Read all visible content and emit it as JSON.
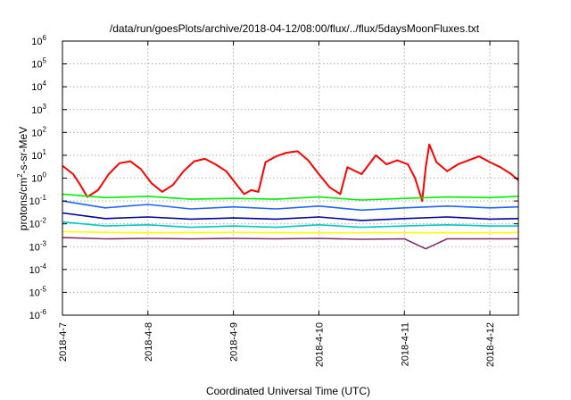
{
  "chart_data": {
    "type": "line",
    "title": "/data/run/goesPlots/archive/2018-04-12/08:00/flux/../flux/5daysMoonFluxes.txt",
    "xlabel": "Coordinated Universal Time (UTC)",
    "ylabel_parts": {
      "base": "protons/cm",
      "exp": "2",
      "rest": "-s-sr-MeV"
    },
    "yscale": "log",
    "ylim": [
      1e-06,
      1000000.0
    ],
    "xlim": [
      "2018-04-07",
      "2018-04-12 08:00"
    ],
    "grid": true,
    "x_ticks": [
      "2018-4-7",
      "2018-4-8",
      "2018-4-9",
      "2018-4-10",
      "2018-4-11",
      "2018-4-12"
    ],
    "y_ticks": [
      {
        "base": "10",
        "exp": "-6"
      },
      {
        "base": "10",
        "exp": "-5"
      },
      {
        "base": "10",
        "exp": "-4"
      },
      {
        "base": "10",
        "exp": "-3"
      },
      {
        "base": "10",
        "exp": "-2"
      },
      {
        "base": "10",
        "exp": "-1"
      },
      {
        "base": "10",
        "exp": "0"
      },
      {
        "base": "10",
        "exp": "1"
      },
      {
        "base": "10",
        "exp": "2"
      },
      {
        "base": "10",
        "exp": "3"
      },
      {
        "base": "10",
        "exp": "4"
      },
      {
        "base": "10",
        "exp": "5"
      },
      {
        "base": "10",
        "exp": "6"
      }
    ],
    "series": [
      {
        "color": "#ff0000",
        "x": [
          "2018-04-07 00:00",
          "2018-04-07 03:00",
          "2018-04-07 05:00",
          "2018-04-07 07:00",
          "2018-04-07 10:00",
          "2018-04-07 13:00",
          "2018-04-07 16:00",
          "2018-04-07 19:00",
          "2018-04-07 22:00",
          "2018-04-08 01:00",
          "2018-04-08 04:00",
          "2018-04-08 07:00",
          "2018-04-08 10:00",
          "2018-04-08 13:00",
          "2018-04-08 16:00",
          "2018-04-08 19:00",
          "2018-04-08 22:00",
          "2018-04-09 01:00",
          "2018-04-09 03:00",
          "2018-04-09 05:00",
          "2018-04-09 07:00",
          "2018-04-09 09:00",
          "2018-04-09 12:00",
          "2018-04-09 15:00",
          "2018-04-09 18:00",
          "2018-04-09 21:00",
          "2018-04-10 00:00",
          "2018-04-10 03:00",
          "2018-04-10 06:00",
          "2018-04-10 08:00",
          "2018-04-10 12:00",
          "2018-04-10 16:00",
          "2018-04-10 19:00",
          "2018-04-10 22:00",
          "2018-04-11 01:00",
          "2018-04-11 03:00",
          "2018-04-11 05:00",
          "2018-04-11 06:00",
          "2018-04-11 07:00",
          "2018-04-11 09:00",
          "2018-04-11 12:00",
          "2018-04-11 15:00",
          "2018-04-11 18:00",
          "2018-04-11 21:00",
          "2018-04-12 00:00",
          "2018-04-12 03:00",
          "2018-04-12 06:00",
          "2018-04-12 08:00"
        ],
        "values": [
          3.5,
          1.5,
          0.5,
          0.15,
          0.3,
          1.5,
          4.5,
          5.5,
          2.5,
          0.6,
          0.25,
          0.5,
          2.0,
          5.5,
          7.0,
          4.0,
          2.0,
          0.5,
          0.2,
          0.3,
          0.25,
          5.0,
          9.0,
          13.0,
          15.0,
          6.0,
          1.5,
          0.4,
          0.2,
          3.0,
          1.5,
          10.0,
          4.0,
          6.0,
          4.0,
          1.0,
          0.1,
          3.0,
          30.0,
          5.0,
          2.0,
          4.0,
          6.0,
          9.0,
          5.0,
          3.0,
          1.5,
          0.8
        ]
      },
      {
        "color": "#00ee00",
        "x": [
          "2018-04-07 00:00",
          "2018-04-07 12:00",
          "2018-04-08 00:00",
          "2018-04-08 12:00",
          "2018-04-09 00:00",
          "2018-04-09 12:00",
          "2018-04-10 00:00",
          "2018-04-10 12:00",
          "2018-04-11 00:00",
          "2018-04-11 12:00",
          "2018-04-12 00:00",
          "2018-04-12 08:00"
        ],
        "values": [
          0.2,
          0.14,
          0.16,
          0.12,
          0.13,
          0.12,
          0.15,
          0.11,
          0.13,
          0.15,
          0.14,
          0.16
        ]
      },
      {
        "color": "#1e64ff",
        "x": [
          "2018-04-07 00:00",
          "2018-04-07 12:00",
          "2018-04-08 00:00",
          "2018-04-08 12:00",
          "2018-04-09 00:00",
          "2018-04-09 12:00",
          "2018-04-10 00:00",
          "2018-04-10 12:00",
          "2018-04-11 00:00",
          "2018-04-11 12:00",
          "2018-04-12 00:00",
          "2018-04-12 08:00"
        ],
        "values": [
          0.1,
          0.05,
          0.07,
          0.045,
          0.055,
          0.045,
          0.06,
          0.04,
          0.05,
          0.06,
          0.05,
          0.055
        ]
      },
      {
        "color": "#0000a0",
        "x": [
          "2018-04-07 00:00",
          "2018-04-07 12:00",
          "2018-04-08 00:00",
          "2018-04-08 12:00",
          "2018-04-09 00:00",
          "2018-04-09 12:00",
          "2018-04-10 00:00",
          "2018-04-10 12:00",
          "2018-04-11 00:00",
          "2018-04-11 12:00",
          "2018-04-12 00:00",
          "2018-04-12 08:00"
        ],
        "values": [
          0.03,
          0.017,
          0.02,
          0.016,
          0.018,
          0.016,
          0.02,
          0.014,
          0.017,
          0.02,
          0.016,
          0.017
        ]
      },
      {
        "color": "#00c8c8",
        "x": [
          "2018-04-07 00:00",
          "2018-04-07 12:00",
          "2018-04-08 00:00",
          "2018-04-08 12:00",
          "2018-04-09 00:00",
          "2018-04-09 12:00",
          "2018-04-10 00:00",
          "2018-04-10 12:00",
          "2018-04-11 00:00",
          "2018-04-11 12:00",
          "2018-04-12 00:00",
          "2018-04-12 08:00"
        ],
        "values": [
          0.012,
          0.008,
          0.009,
          0.007,
          0.008,
          0.007,
          0.009,
          0.007,
          0.008,
          0.009,
          0.008,
          0.008
        ]
      },
      {
        "color": "#ffff00",
        "x": [
          "2018-04-07 00:00",
          "2018-04-08 00:00",
          "2018-04-09 00:00",
          "2018-04-10 00:00",
          "2018-04-11 00:00",
          "2018-04-12 00:00",
          "2018-04-12 08:00"
        ],
        "values": [
          0.0045,
          0.004,
          0.0042,
          0.004,
          0.0041,
          0.004,
          0.0042
        ]
      },
      {
        "color": "#80306a",
        "x": [
          "2018-04-07 00:00",
          "2018-04-07 12:00",
          "2018-04-08 00:00",
          "2018-04-08 12:00",
          "2018-04-09 00:00",
          "2018-04-09 12:00",
          "2018-04-10 00:00",
          "2018-04-10 12:00",
          "2018-04-11 00:00",
          "2018-04-11 06:00",
          "2018-04-11 12:00",
          "2018-04-12 00:00",
          "2018-04-12 08:00"
        ],
        "values": [
          0.0025,
          0.0022,
          0.0023,
          0.0022,
          0.0023,
          0.0022,
          0.0023,
          0.0021,
          0.0022,
          0.0008,
          0.0022,
          0.0022,
          0.0022
        ]
      }
    ]
  }
}
